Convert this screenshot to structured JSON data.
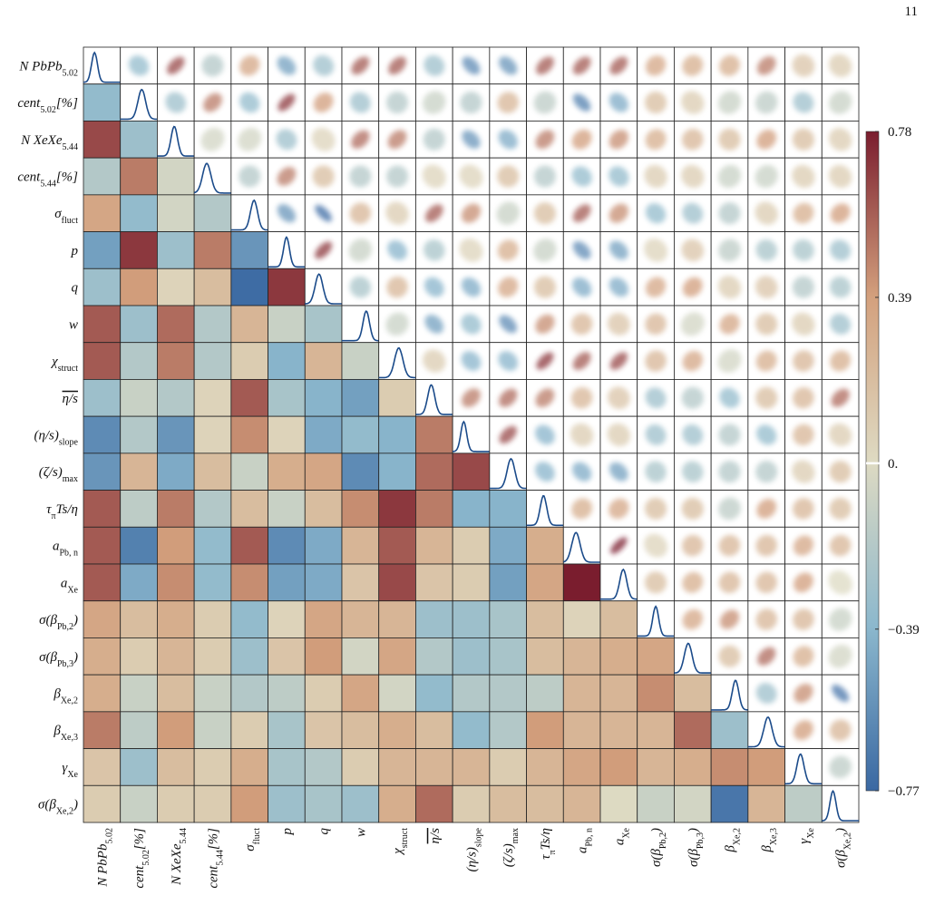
{
  "page_number": "11",
  "chart_data": {
    "type": "correlation-matrix",
    "labels": [
      {
        "text": "N PbPb",
        "sub": "5.02"
      },
      {
        "text": "cent",
        "sub": "5.02",
        "tail": "[%]"
      },
      {
        "text": "N XeXe",
        "sub": "5.44"
      },
      {
        "text": "cent",
        "sub": "5.44",
        "tail": "[%]"
      },
      {
        "text": "σ",
        "sub": "fluct"
      },
      {
        "text": "p"
      },
      {
        "text": "q"
      },
      {
        "text": "w"
      },
      {
        "text": "χ",
        "sub": "struct"
      },
      {
        "text": "η/s",
        "overline": true
      },
      {
        "text": "(η/s)",
        "sub": "slope"
      },
      {
        "text": "(ζ/s)",
        "sub": "max"
      },
      {
        "text": "τ",
        "sub": "π",
        "tail": "Ts/η"
      },
      {
        "text": "a",
        "sub": "Pb, n"
      },
      {
        "text": "a",
        "sub": "Xe"
      },
      {
        "text": "σ(β",
        "sub": "Pb,2",
        "tail": ")"
      },
      {
        "text": "σ(β",
        "sub": "Pb,3",
        "tail": ")"
      },
      {
        "text": "β",
        "sub": "Xe,2"
      },
      {
        "text": "β",
        "sub": "Xe,3"
      },
      {
        "text": "γ",
        "sub": "Xe"
      },
      {
        "text": "σ(β",
        "sub": "Xe,2",
        "tail": ")"
      }
    ],
    "matrix": [
      [],
      [
        -0.35
      ],
      [
        0.65,
        -0.3
      ],
      [
        -0.2,
        0.5,
        -0.05
      ],
      [
        0.35,
        -0.35,
        -0.05,
        -0.2
      ],
      [
        -0.5,
        0.7,
        -0.3,
        0.5,
        -0.55
      ],
      [
        -0.3,
        0.4,
        0.05,
        0.2,
        -0.75,
        0.7
      ],
      [
        0.6,
        -0.3,
        0.55,
        -0.2,
        0.25,
        -0.1,
        -0.25
      ],
      [
        0.6,
        -0.2,
        0.5,
        -0.2,
        0.1,
        -0.4,
        0.25,
        -0.1
      ],
      [
        -0.3,
        -0.1,
        -0.2,
        0.05,
        0.6,
        -0.25,
        -0.4,
        -0.5,
        0.1
      ],
      [
        -0.6,
        -0.2,
        -0.55,
        0.05,
        0.45,
        0.05,
        -0.45,
        -0.35,
        -0.4,
        0.5
      ],
      [
        -0.55,
        0.25,
        -0.45,
        0.2,
        -0.1,
        0.3,
        0.35,
        -0.6,
        -0.4,
        0.55,
        0.65
      ],
      [
        0.6,
        -0.15,
        0.5,
        -0.2,
        0.2,
        -0.1,
        0.2,
        0.45,
        0.7,
        0.5,
        -0.4,
        -0.4
      ],
      [
        0.6,
        -0.65,
        0.4,
        -0.35,
        0.6,
        -0.6,
        -0.45,
        0.25,
        0.6,
        0.25,
        0.1,
        -0.45,
        0.3
      ],
      [
        0.6,
        -0.45,
        0.45,
        -0.35,
        0.45,
        -0.5,
        -0.45,
        0.15,
        0.65,
        0.15,
        0.1,
        -0.5,
        0.35,
        0.78
      ],
      [
        0.35,
        0.2,
        0.3,
        0.1,
        -0.35,
        0.05,
        0.35,
        0.25,
        0.25,
        -0.3,
        -0.3,
        -0.25,
        0.2,
        0.05,
        0.2
      ],
      [
        0.3,
        0.1,
        0.25,
        0.1,
        -0.3,
        0.15,
        0.4,
        -0.05,
        0.35,
        -0.2,
        -0.3,
        -0.25,
        0.2,
        0.25,
        0.3,
        0.35
      ],
      [
        0.3,
        -0.1,
        0.2,
        -0.1,
        -0.2,
        -0.15,
        0.1,
        0.35,
        -0.05,
        -0.35,
        -0.2,
        -0.2,
        -0.15,
        0.25,
        0.25,
        0.45,
        0.2
      ],
      [
        0.5,
        -0.15,
        0.4,
        -0.1,
        0.1,
        -0.25,
        0.15,
        0.2,
        0.3,
        0.2,
        -0.35,
        -0.2,
        0.4,
        0.25,
        0.25,
        0.25,
        0.55,
        -0.3
      ],
      [
        0.15,
        -0.3,
        0.2,
        0.1,
        0.3,
        -0.25,
        -0.2,
        0.1,
        0.25,
        0.25,
        0.25,
        0.1,
        0.25,
        0.35,
        0.4,
        0.25,
        0.3,
        0.45,
        0.4
      ],
      [
        0.1,
        -0.1,
        0.1,
        0.1,
        0.4,
        -0.3,
        -0.25,
        -0.3,
        0.3,
        0.55,
        0.1,
        0.2,
        0.2,
        0.25,
        0.0,
        -0.1,
        -0.05,
        -0.7,
        0.25,
        -0.15
      ]
    ],
    "colorbar": {
      "lim": [
        -0.77,
        0.78
      ],
      "ticks": [
        {
          "value": -0.77,
          "label": "−0.77"
        },
        {
          "value": -0.39,
          "label": "−0.39"
        },
        {
          "value": 0,
          "label": "0."
        },
        0.39,
        0.78
      ],
      "colors": [
        "#3a68a2",
        "#8cb8cd",
        "#dedac2",
        "#d3a07d",
        "#7a1d2e"
      ]
    },
    "diagonal_color": "#1b4b8a"
  }
}
